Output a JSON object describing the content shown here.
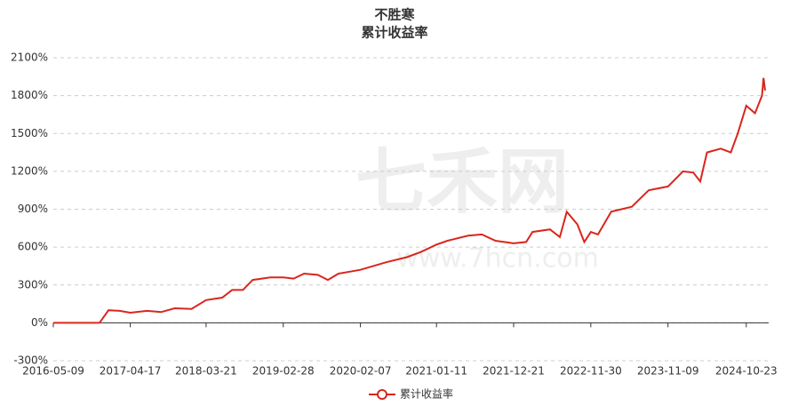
{
  "chart_data": {
    "type": "line",
    "title": "不胜寒",
    "subtitle": "累计收益率",
    "watermark": "七禾网",
    "watermark_sub": "www.7hcn.com",
    "x": [
      "2016-05-09",
      "2016-12-01",
      "2017-01-10",
      "2017-03-01",
      "2017-04-17",
      "2017-07-01",
      "2017-09-01",
      "2017-11-01",
      "2018-01-15",
      "2018-03-21",
      "2018-06-01",
      "2018-07-15",
      "2018-09-01",
      "2018-10-15",
      "2019-01-01",
      "2019-02-28",
      "2019-04-15",
      "2019-06-01",
      "2019-08-01",
      "2019-09-15",
      "2019-11-01",
      "2020-02-07",
      "2020-06-01",
      "2020-09-01",
      "2020-11-01",
      "2021-01-11",
      "2021-03-01",
      "2021-06-01",
      "2021-08-01",
      "2021-10-01",
      "2021-12-21",
      "2022-02-15",
      "2022-03-15",
      "2022-06-01",
      "2022-07-15",
      "2022-08-15",
      "2022-10-01",
      "2022-11-01",
      "2022-11-30",
      "2023-01-01",
      "2023-03-01",
      "2023-06-01",
      "2023-08-15",
      "2023-11-09",
      "2024-01-15",
      "2024-03-01",
      "2024-04-01",
      "2024-05-01",
      "2024-07-01",
      "2024-08-15",
      "2024-09-15",
      "2024-10-23",
      "2024-12-01",
      "2025-01-01",
      "2025-01-08",
      "2025-01-15"
    ],
    "series": [
      {
        "name": "累计收益率",
        "color": "#d9261c",
        "values": [
          0,
          0,
          100,
          95,
          80,
          95,
          85,
          115,
          110,
          180,
          200,
          260,
          260,
          340,
          360,
          360,
          350,
          390,
          380,
          340,
          390,
          420,
          480,
          520,
          560,
          620,
          650,
          690,
          700,
          650,
          630,
          640,
          720,
          740,
          680,
          880,
          780,
          640,
          720,
          700,
          880,
          920,
          1050,
          1080,
          1200,
          1190,
          1120,
          1350,
          1380,
          1350,
          1500,
          1720,
          1660,
          1800,
          1940,
          1840
        ]
      }
    ],
    "xlim": [
      "2016-05-09",
      "2025-01-15"
    ],
    "xticks": [
      "2016-05-09",
      "2017-04-17",
      "2018-03-21",
      "2019-02-28",
      "2020-02-07",
      "2021-01-11",
      "2021-12-21",
      "2022-11-30",
      "2023-11-09",
      "2024-10-23"
    ],
    "ylim": [
      -300,
      2100
    ],
    "yticks": [
      {
        "value": -300,
        "label": "-300%"
      },
      {
        "value": 0,
        "label": "0%"
      },
      {
        "value": 300,
        "label": "300%"
      },
      {
        "value": 600,
        "label": "600%"
      },
      {
        "value": 900,
        "label": "900%"
      },
      {
        "value": 1200,
        "label": "1200%"
      },
      {
        "value": 1500,
        "label": "1500%"
      },
      {
        "value": 1800,
        "label": "1800%"
      },
      {
        "value": 2100,
        "label": "2100%"
      }
    ],
    "grid": true
  }
}
